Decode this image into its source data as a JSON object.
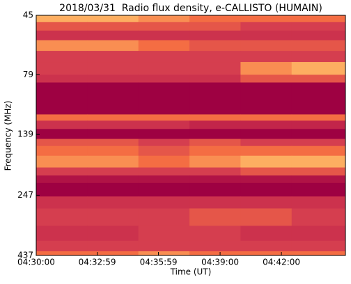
{
  "chart_data": {
    "type": "heatmap",
    "title": "2018/03/31  Radio flux density, e-CALLISTO (HUMAIN)",
    "xlabel": "Time (UT)",
    "ylabel": "Frequency (MHz)",
    "x_edges": [
      16200,
      16350,
      16500,
      16650,
      16800,
      16950,
      17108
    ],
    "y_edges": [
      45,
      48,
      52,
      57,
      63,
      70,
      79,
      85,
      115,
      122,
      132,
      145,
      155,
      170,
      190,
      205,
      220,
      250,
      280,
      330,
      380,
      420,
      437
    ],
    "values": [
      [
        8,
        8,
        7,
        6,
        6,
        6
      ],
      [
        5,
        5,
        5,
        5,
        4,
        4
      ],
      [
        3,
        3,
        3,
        3,
        3,
        3
      ],
      [
        7,
        7,
        6,
        5,
        5,
        5
      ],
      [
        4,
        4,
        4,
        4,
        4,
        4
      ],
      [
        4,
        4,
        4,
        4,
        7,
        8
      ],
      [
        3,
        3,
        3,
        3,
        5,
        5
      ],
      [
        0,
        0,
        0,
        0,
        0,
        0
      ],
      [
        6,
        6,
        6,
        6,
        6,
        6
      ],
      [
        3,
        3,
        3,
        2,
        2,
        2
      ],
      [
        0,
        0,
        0,
        0,
        0,
        0
      ],
      [
        5,
        5,
        4,
        5,
        4,
        4
      ],
      [
        6,
        6,
        5,
        6,
        6,
        6
      ],
      [
        7,
        7,
        6,
        7,
        8,
        8
      ],
      [
        4,
        4,
        4,
        4,
        5,
        5
      ],
      [
        1,
        1,
        1,
        1,
        1,
        1
      ],
      [
        0,
        0,
        0,
        0,
        0,
        0
      ],
      [
        3,
        3,
        3,
        3,
        3,
        3
      ],
      [
        4,
        4,
        4,
        5,
        5,
        4
      ],
      [
        3,
        3,
        4,
        4,
        3,
        3
      ],
      [
        4,
        4,
        4,
        4,
        4,
        4
      ],
      [
        6,
        6,
        7,
        6,
        6,
        6
      ]
    ],
    "zlim": [
      0,
      10
    ],
    "colorscale": [
      "#9e0142",
      "#c2254a",
      "#d53e4f",
      "#f46d43",
      "#fdae61",
      "#fee08b"
    ],
    "xlim": [
      16200,
      17108
    ],
    "xticks": [
      {
        "value": 16200,
        "label": "04:30:00"
      },
      {
        "value": 16379,
        "label": "04:32:59"
      },
      {
        "value": 16559,
        "label": "04:35:59"
      },
      {
        "value": 16740,
        "label": "04:39:00"
      },
      {
        "value": 16920,
        "label": "04:42:00"
      }
    ],
    "ylim": [
      437,
      45
    ],
    "yticks": [
      45,
      79,
      139,
      247,
      437
    ],
    "log_y": true
  }
}
